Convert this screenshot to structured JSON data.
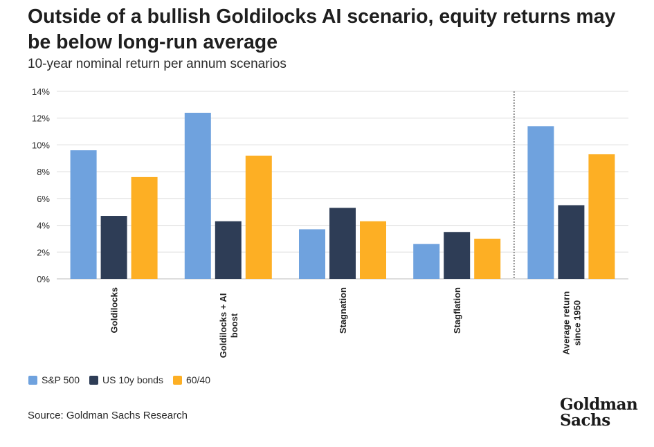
{
  "title": "Outside of a bullish Goldilocks AI scenario, equity returns may be below long-run average",
  "subtitle": "10-year nominal return per annum scenarios",
  "source": "Source: Goldman Sachs Research",
  "logo": {
    "line1": "Goldman",
    "line2": "Sachs"
  },
  "chart_data": {
    "type": "bar",
    "title": "Outside of a bullish Goldilocks AI scenario, equity returns may be below long-run average",
    "subtitle": "10-year nominal return per annum scenarios",
    "categories": [
      "Goldilocks",
      "Goldilocks + AI boost",
      "Stagnation",
      "Stagflation",
      "Average return since 1950"
    ],
    "category_label_lines": [
      [
        "Goldilocks"
      ],
      [
        "Goldilocks + AI",
        "boost"
      ],
      [
        "Stagnation"
      ],
      [
        "Stagflation"
      ],
      [
        "Average return",
        "since 1950"
      ]
    ],
    "series": [
      {
        "name": "S&P 500",
        "color": "#6fa2de",
        "values": [
          9.6,
          12.4,
          3.7,
          2.6,
          11.4
        ]
      },
      {
        "name": "US 10y bonds",
        "color": "#2e3d56",
        "values": [
          4.7,
          4.3,
          5.3,
          3.5,
          5.5
        ]
      },
      {
        "name": "60/40",
        "color": "#fdaf24",
        "values": [
          7.6,
          9.2,
          4.3,
          3.0,
          9.3
        ]
      }
    ],
    "yticks": [
      "0%",
      "2%",
      "4%",
      "6%",
      "8%",
      "10%",
      "12%",
      "14%"
    ],
    "ylim": [
      0,
      14
    ],
    "ystep": 2,
    "grid": true,
    "legend": "bottom-left",
    "divider_before_category": 4
  }
}
